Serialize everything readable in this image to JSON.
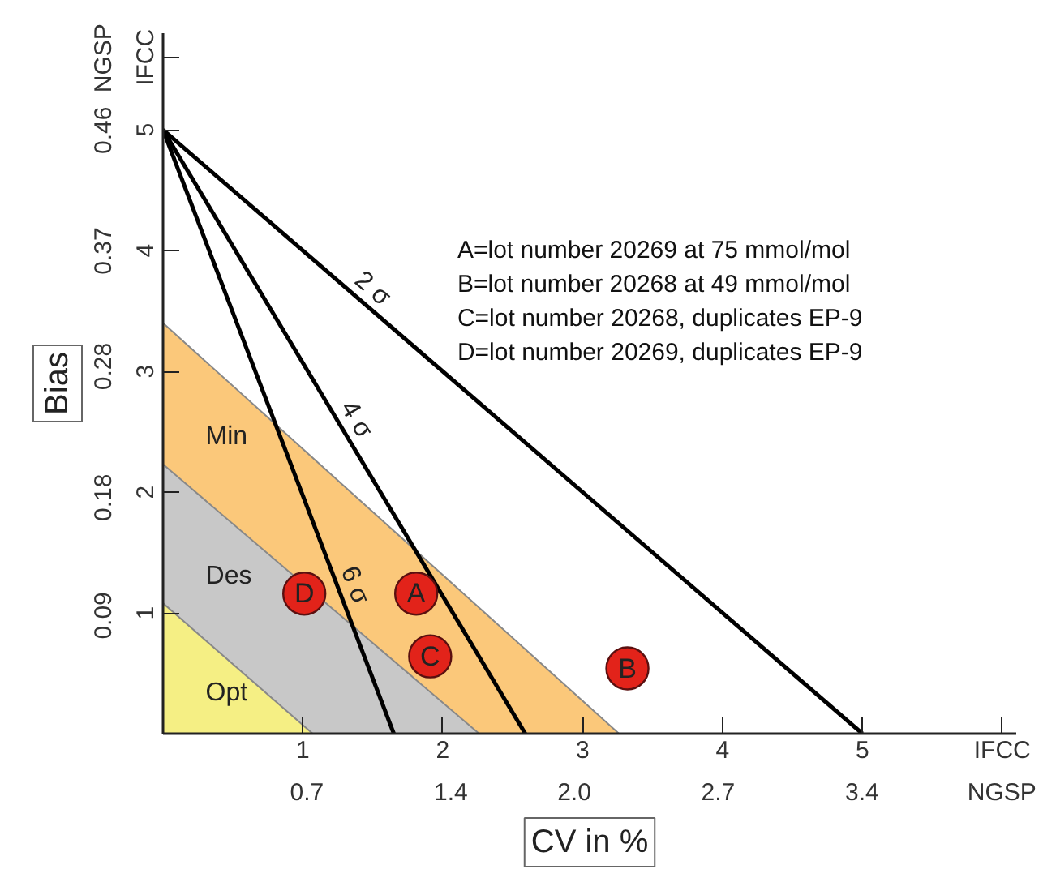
{
  "chart_data": {
    "type": "line",
    "xlabel": "CV in %",
    "y2label": "Bias",
    "xlim": [
      0,
      6.1
    ],
    "ylim": [
      0,
      5.8
    ],
    "xticks": [
      1,
      2,
      3,
      4,
      5,
      {
        "value": 6,
        "label": "IFCC"
      }
    ],
    "x2lim": [
      0,
      4.15
    ],
    "x2ticks": [
      0.7,
      1.4,
      {
        "value": 2.0,
        "label": "2.0"
      },
      2.7,
      3.4,
      {
        "value": 4.08,
        "label": "NGSP"
      }
    ],
    "yticks": [
      1,
      2,
      3,
      4,
      5,
      {
        "value": 5.6,
        "label": "IFCC"
      }
    ],
    "y2lim": [
      0,
      0.534
    ],
    "y2ticks": [
      0.09,
      0.18,
      0.28,
      {
        "value": 0.368,
        "label": "0.37"
      },
      0.46,
      {
        "value": 0.515,
        "label": "NGSP"
      }
    ],
    "grid": false,
    "line_style": "solid",
    "series": [
      {
        "type": "area",
        "name": "Min",
        "color": "#fbc87a",
        "x": [
          0,
          3.26
        ],
        "values": [
          3.4,
          0
        ]
      },
      {
        "type": "area",
        "name": "Des",
        "color": "#c8c8c8",
        "x": [
          0,
          2.26
        ],
        "values": [
          2.23,
          0
        ]
      },
      {
        "type": "area",
        "name": "Opt",
        "color": "#f5ef84",
        "x": [
          0,
          1.07
        ],
        "values": [
          1.08,
          0
        ]
      },
      {
        "color": "#000000",
        "x": [
          0,
          5
        ],
        "values": [
          5,
          0
        ]
      },
      {
        "color": "#000000",
        "x": [
          0,
          2.59
        ],
        "values": [
          5,
          0
        ]
      },
      {
        "color": "#000000",
        "x": [
          0,
          1.65
        ],
        "values": [
          5,
          0
        ]
      },
      {
        "type": "scatter",
        "marker": "circle",
        "name": "A",
        "color": "#e2231a",
        "x": [
          1.81
        ],
        "values": [
          1.16
        ]
      },
      {
        "type": "scatter",
        "marker": "circle",
        "name": "B",
        "color": "#e2231a",
        "x": [
          3.32
        ],
        "values": [
          0.54
        ]
      },
      {
        "type": "scatter",
        "marker": "circle",
        "name": "C",
        "color": "#e2231a",
        "x": [
          1.91
        ],
        "values": [
          0.64
        ]
      },
      {
        "type": "scatter",
        "marker": "circle",
        "name": "D",
        "color": "#e2231a",
        "x": [
          1.01
        ],
        "values": [
          1.16
        ]
      }
    ],
    "annotations": [
      {
        "text": "2 σ",
        "x": 1.42,
        "y": 3.58
      },
      {
        "text": "4 σ",
        "x": 1.28,
        "y": 2.53
      },
      {
        "text": "6 σ",
        "x": 1.26,
        "y": 1.18
      },
      "A=lot number 20269 at 75 mmol/mol",
      "B=lot number 20268 at 49 mmol/mol",
      "C=lot number 20268, duplicates EP-9",
      "D=lot number 20269, duplicates EP-9"
    ]
  }
}
